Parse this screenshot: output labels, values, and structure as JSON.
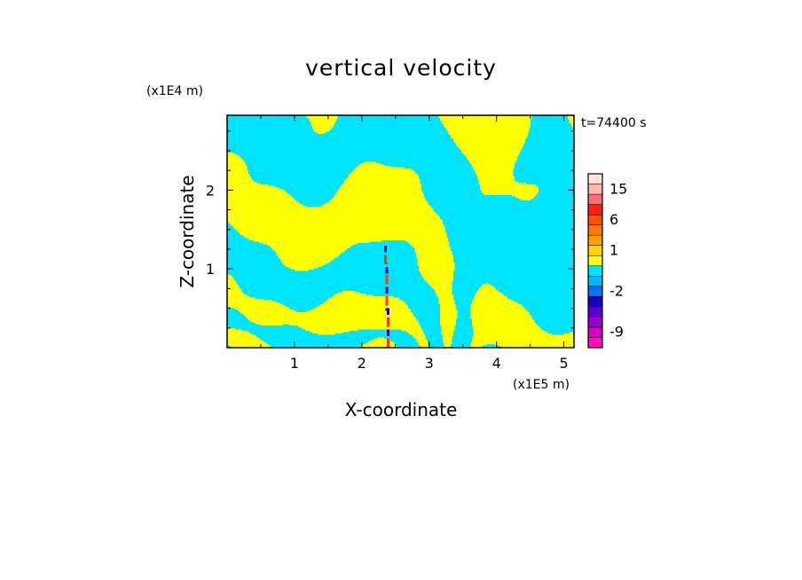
{
  "chart_data": {
    "type": "heatmap",
    "title": "vertical velocity",
    "xlabel": "X-coordinate",
    "ylabel": "Z-coordinate",
    "x_scale_note": "(x1E5 m)",
    "y_scale_note": "(x1E4 m)",
    "time_label": "t=74400 s",
    "xlim": [
      0,
      5.15
    ],
    "ylim": [
      0,
      2.95
    ],
    "x_ticks": [
      1,
      2,
      3,
      4,
      5
    ],
    "y_ticks": [
      1,
      2
    ],
    "x_tick_labels": [
      "1",
      "2",
      "3",
      "4",
      "5"
    ],
    "y_tick_labels": [
      "1",
      "2"
    ],
    "field_colors": {
      "positive_small": "#ffff00",
      "negative_small": "#00e5ff",
      "strong_positive": "#ff3b00",
      "strong_negative": "#1a00c8"
    },
    "colorbar": {
      "levels": [
        {
          "value": -12,
          "color": "#ff10b0"
        },
        {
          "value": -9,
          "color": "#d800c0"
        },
        {
          "value": -6,
          "color": "#9a00c8"
        },
        {
          "value": -4,
          "color": "#5a00d0"
        },
        {
          "value": -3,
          "color": "#1a00c8"
        },
        {
          "value": -2,
          "color": "#0070ff"
        },
        {
          "value": -1,
          "color": "#00b8ff"
        },
        {
          "value": 0,
          "color": "#00e5ff"
        },
        {
          "value": 0.5,
          "color": "#ffff00"
        },
        {
          "value": 1,
          "color": "#ffd400"
        },
        {
          "value": 2,
          "color": "#ffa000"
        },
        {
          "value": 4,
          "color": "#ff7800"
        },
        {
          "value": 6,
          "color": "#ff5000"
        },
        {
          "value": 9,
          "color": "#ff1e10"
        },
        {
          "value": 12,
          "color": "#ff6e70"
        },
        {
          "value": 15,
          "color": "#ffb8b0"
        },
        {
          "value": 20,
          "color": "#ffe4dc"
        }
      ],
      "tick_labels": [
        "15",
        "6",
        "1",
        "-2",
        "-9"
      ],
      "tick_values": [
        15,
        6,
        1,
        -2,
        -9
      ]
    }
  }
}
